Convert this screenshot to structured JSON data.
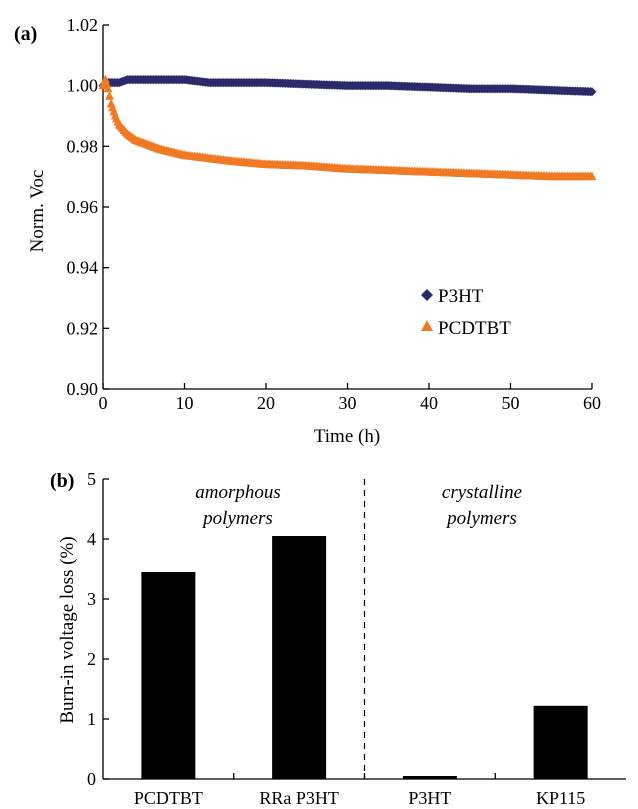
{
  "chart_data": [
    {
      "type": "scatter",
      "panel_label": "(a)",
      "xlabel": "Time (h)",
      "ylabel": "Norm. Voc",
      "xlim": [
        0,
        60
      ],
      "ylim": [
        0.9,
        1.02
      ],
      "xticks": [
        0,
        10,
        20,
        30,
        40,
        50,
        60
      ],
      "xtick_labels": [
        "0",
        "10",
        "20",
        "30",
        "40",
        "50",
        "60"
      ],
      "yticks": [
        0.9,
        0.92,
        0.94,
        0.96,
        0.98,
        1.0,
        1.02
      ],
      "ytick_labels": [
        "0.90",
        "0.92",
        "0.94",
        "0.96",
        "0.98",
        "1.00",
        "1.02"
      ],
      "grid": false,
      "legend_position": "lower-right",
      "series": [
        {
          "name": "P3HT",
          "marker": "diamond",
          "color": "#2b2b6b",
          "x": [
            0,
            0.5,
            1,
            2,
            3,
            5,
            7,
            10,
            13,
            16,
            20,
            25,
            30,
            35,
            40,
            45,
            50,
            55,
            60
          ],
          "y": [
            1.0,
            1.001,
            1.001,
            1.001,
            1.002,
            1.002,
            1.002,
            1.002,
            1.001,
            1.001,
            1.001,
            1.0005,
            1.0,
            1.0,
            0.9995,
            0.999,
            0.999,
            0.9985,
            0.998
          ]
        },
        {
          "name": "PCDTBT",
          "marker": "triangle",
          "color": "#f07a24",
          "x": [
            0,
            0.3,
            0.6,
            1,
            1.5,
            2,
            3,
            4,
            5,
            7,
            10,
            13,
            16,
            20,
            25,
            30,
            35,
            40,
            45,
            50,
            55,
            60
          ],
          "y": [
            1.0,
            1.002,
            0.999,
            0.994,
            0.99,
            0.987,
            0.984,
            0.982,
            0.981,
            0.979,
            0.977,
            0.976,
            0.975,
            0.974,
            0.9735,
            0.9725,
            0.972,
            0.9715,
            0.971,
            0.9705,
            0.97,
            0.97
          ]
        }
      ]
    },
    {
      "type": "bar",
      "panel_label": "(b)",
      "ylabel": "Burn-in voltage loss (%)",
      "categories": [
        "PCDTBT",
        "RRa P3HT",
        "P3HT",
        "KP115"
      ],
      "values": [
        3.45,
        4.05,
        0.05,
        1.22
      ],
      "ylim": [
        0,
        5
      ],
      "yticks": [
        0,
        1,
        2,
        3,
        4,
        5
      ],
      "ytick_labels": [
        "0",
        "1",
        "2",
        "3",
        "4",
        "5"
      ],
      "bar_color": "#000000",
      "annotations": [
        {
          "line1": "amorphous",
          "line2": "polymers"
        },
        {
          "line1": "crystalline",
          "line2": "polymers"
        }
      ],
      "divider_between": [
        2,
        3
      ]
    }
  ]
}
